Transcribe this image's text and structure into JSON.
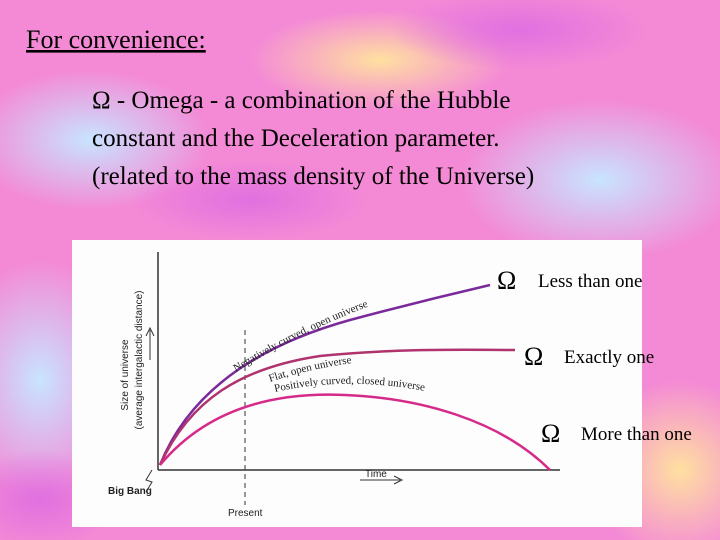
{
  "header": {
    "title": "For convenience:"
  },
  "body": {
    "lines": [
      "Ω - Omega - a combination of the Hubble",
      "constant and the Deceleration parameter.",
      "(related to the mass density of the Universe)"
    ]
  },
  "diagram": {
    "y_axis_label": "Size of universe",
    "y_axis_sublabel": "(average intergalactic distance)",
    "x_axis_label": "Time",
    "origin_label": "Big Bang",
    "marker_label": "Present",
    "curves": [
      {
        "label": "Negatively curved, open universe",
        "symbol": "Ω",
        "meaning": "Less than one"
      },
      {
        "label": "Flat, open universe",
        "symbol": "Ω",
        "meaning": "Exactly one"
      },
      {
        "label": "Positively curved, closed universe",
        "symbol": "Ω",
        "meaning": "More than one"
      }
    ]
  }
}
